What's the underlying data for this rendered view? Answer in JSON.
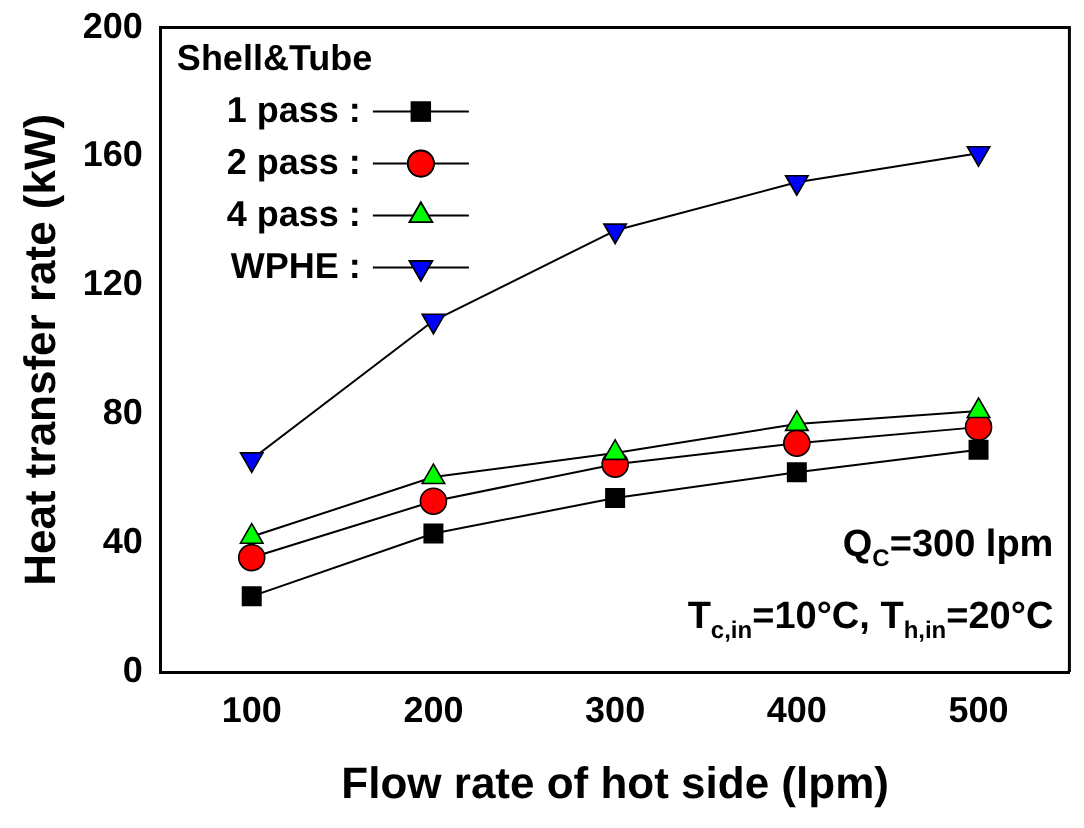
{
  "chart_data": {
    "type": "line",
    "xlabel": "Flow rate of hot side (lpm)",
    "ylabel": "Heat transfer rate (kW)",
    "legend_title": "Shell&Tube",
    "legend": "top left",
    "grid": false,
    "x": [
      100,
      200,
      300,
      400,
      500
    ],
    "xlim": [
      50,
      550
    ],
    "xticks": [
      100,
      200,
      300,
      400,
      500
    ],
    "ylim": [
      0,
      200
    ],
    "yticks": [
      0,
      40,
      80,
      120,
      160,
      200
    ],
    "series": [
      {
        "name": "1 pass :",
        "color": "#000000",
        "marker": "square",
        "values": [
          23.5,
          43,
          54,
          62,
          69
        ]
      },
      {
        "name": "2 pass :",
        "color": "#ff0000",
        "marker": "circle",
        "values": [
          35.5,
          53,
          64.5,
          71,
          76
        ]
      },
      {
        "name": "4 pass :",
        "color": "#00ff00",
        "marker": "triangle",
        "values": [
          42,
          60.5,
          68,
          77,
          81
        ]
      },
      {
        "name": "WPHE :",
        "color": "#0000ff",
        "marker": "triangle-down",
        "values": [
          66,
          109,
          137,
          152,
          161
        ]
      }
    ],
    "annotations": [
      "Q$_{C}$=300 lpm",
      "T$_{c,in}$=10°C, T$_{h,in}$=20°C"
    ]
  }
}
